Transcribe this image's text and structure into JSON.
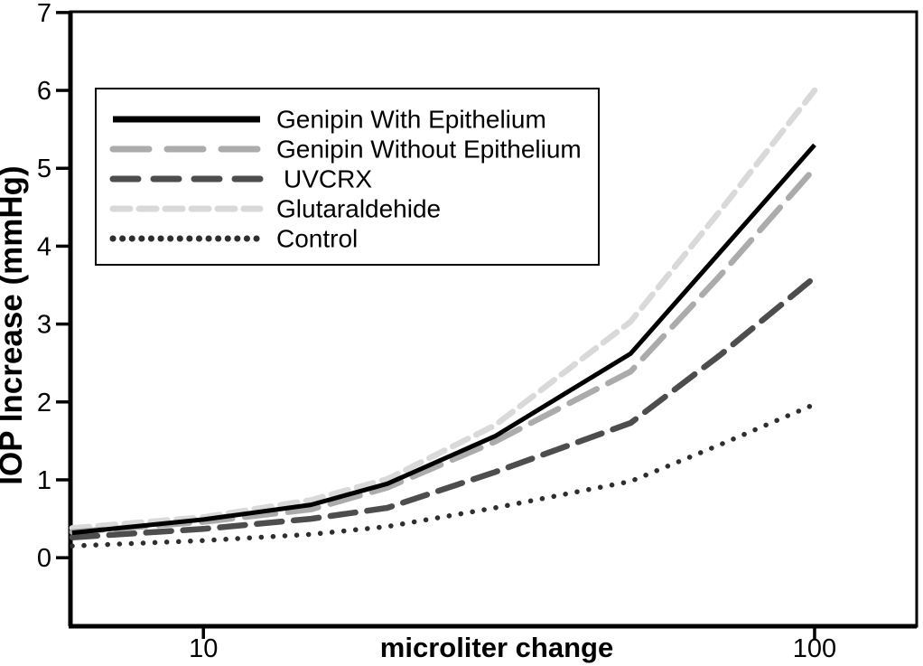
{
  "figure": {
    "background": "#ffffff",
    "axis_color": "#000000",
    "text_color": "#000000"
  },
  "chart_data": {
    "type": "line",
    "title": "",
    "xlabel": "microliter change",
    "ylabel": "IOP Increase (mmHg)",
    "x_scale": "log",
    "y_scale": "linear",
    "xlim": [
      6.06,
      146.9
    ],
    "ylim": [
      -0.88,
      7.01
    ],
    "grid": false,
    "legend_position": "upper-left-inside",
    "x_ticks": [
      {
        "value": 10,
        "label": "10"
      },
      {
        "value": 100,
        "label": "100"
      }
    ],
    "y_ticks": [
      {
        "value": 0,
        "label": "0"
      },
      {
        "value": 1,
        "label": "1"
      },
      {
        "value": 2,
        "label": "2"
      },
      {
        "value": 3,
        "label": "3"
      },
      {
        "value": 4,
        "label": "4"
      },
      {
        "value": 5,
        "label": "5"
      },
      {
        "value": 6,
        "label": "6"
      },
      {
        "value": 7,
        "label": "7"
      }
    ],
    "x": [
      6.1,
      10,
      15,
      20,
      30,
      50,
      70,
      100
    ],
    "series": [
      {
        "name": "Genipin With Epithelium",
        "color": "#000000",
        "line_style": "solid",
        "width": 5,
        "dash": null,
        "legend_dash": null,
        "values": [
          0.32,
          0.49,
          0.68,
          0.95,
          1.56,
          2.62,
          3.92,
          5.3
        ]
      },
      {
        "name": "Genipin Without Epithelium",
        "color": "#ababab",
        "line_style": "long-dash",
        "width": 6.5,
        "dash": "34 14",
        "legend_dash": "40 20",
        "values": [
          0.33,
          0.46,
          0.62,
          0.9,
          1.49,
          2.39,
          3.62,
          5.0
        ]
      },
      {
        "name": " UVCRX",
        "color": "#4d4d4d",
        "line_style": "dash",
        "width": 6.5,
        "dash": "28 13",
        "legend_dash": "28 17",
        "values": [
          0.26,
          0.37,
          0.5,
          0.64,
          1.1,
          1.73,
          2.6,
          3.6
        ]
      },
      {
        "name": "Glutaraldehide",
        "color": "#d9d9d9",
        "line_style": "short-dash",
        "width": 6.5,
        "dash": "19 10",
        "legend_dash": "19 10",
        "values": [
          0.38,
          0.52,
          0.74,
          1.01,
          1.7,
          3.03,
          4.45,
          6.0
        ]
      },
      {
        "name": "Control",
        "color": "#2e2e2e",
        "line_style": "dotted",
        "width": 5.5,
        "dash": "0.1 13",
        "legend_dash": "0.1 10.5",
        "values": [
          0.15,
          0.22,
          0.3,
          0.4,
          0.64,
          0.98,
          1.45,
          1.97
        ]
      }
    ]
  }
}
